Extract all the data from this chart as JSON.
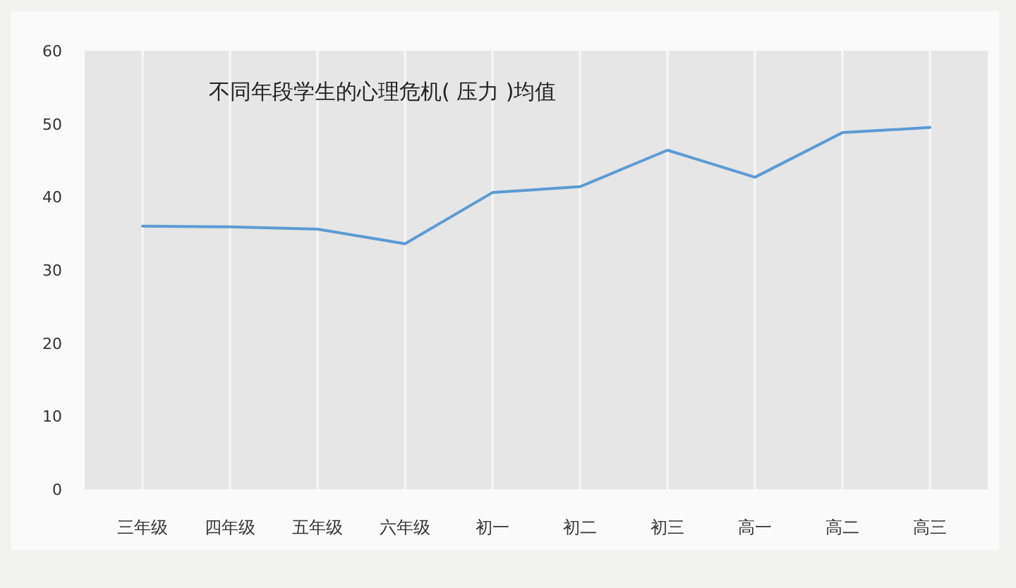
{
  "chart_data": {
    "type": "line",
    "title": "不同年段学生的心理危机( 压力 )均值",
    "categories": [
      "三年级",
      "四年级",
      "五年级",
      "六年级",
      "初一",
      "初二",
      "初三",
      "高一",
      "高二",
      "高三"
    ],
    "values": [
      36.0,
      35.9,
      35.6,
      33.6,
      40.6,
      41.4,
      46.4,
      42.7,
      48.8,
      49.5
    ],
    "color": "#5b9bd5",
    "ylim": [
      0,
      60
    ],
    "yticks": [
      0,
      10,
      20,
      30,
      40,
      50,
      60
    ],
    "grid": "x"
  }
}
